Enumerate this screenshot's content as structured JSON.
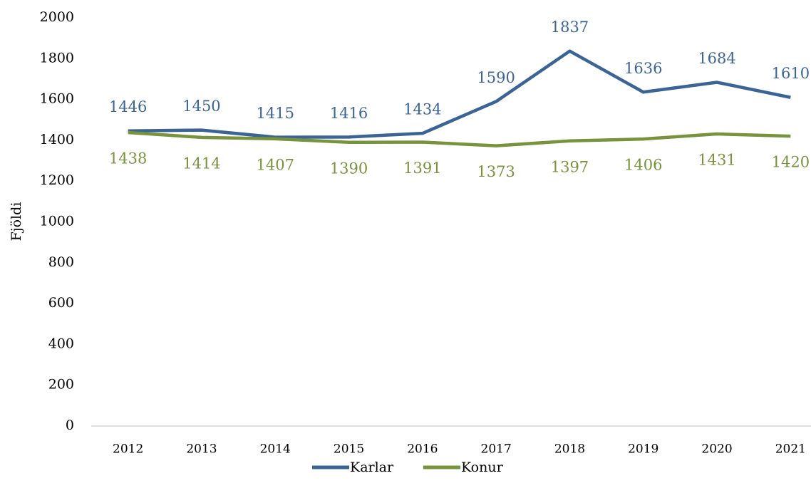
{
  "chart_data": {
    "type": "line",
    "y_label": "Fjöldi",
    "categories": [
      "2012",
      "2013",
      "2014",
      "2015",
      "2016",
      "2017",
      "2018",
      "2019",
      "2020",
      "2021"
    ],
    "series": [
      {
        "name": "Karlar",
        "color": "#3b6496",
        "values": [
          1446,
          1450,
          1415,
          1416,
          1434,
          1590,
          1837,
          1636,
          1684,
          1610
        ]
      },
      {
        "name": "Konur",
        "color": "#77933c",
        "values": [
          1438,
          1414,
          1407,
          1390,
          1391,
          1373,
          1397,
          1406,
          1431,
          1420
        ]
      }
    ],
    "ylim": [
      0,
      2000
    ],
    "yticks": [
      0,
      200,
      400,
      600,
      800,
      1000,
      1200,
      1400,
      1600,
      1800,
      2000
    ],
    "grid": false,
    "legend": "bottom"
  }
}
